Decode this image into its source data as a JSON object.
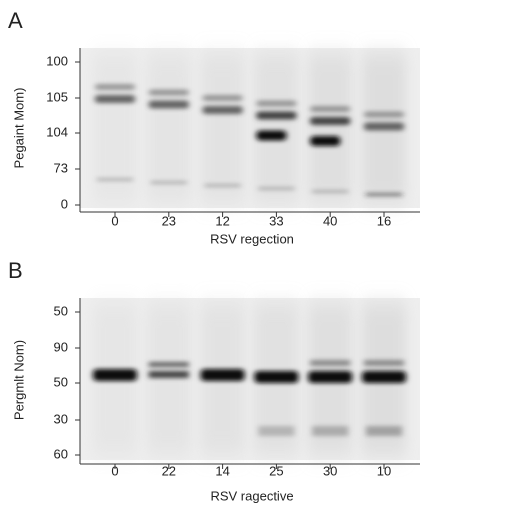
{
  "panels": [
    {
      "label": "A",
      "y_axis_title": "Pegaint Mom)",
      "y_labels": [
        "100",
        "105",
        "104",
        "73",
        "0"
      ],
      "x_labels": [
        "0",
        "23",
        "12",
        "33",
        "40",
        "16"
      ],
      "x_axis_title": "RSV regection"
    },
    {
      "label": "B",
      "y_axis_title": "Pergmlt Nom)",
      "y_labels": [
        "50",
        "90",
        "50",
        "30",
        "60"
      ],
      "x_labels": [
        "0",
        "22",
        "14",
        "25",
        "30",
        "10"
      ],
      "x_axis_title": "RSV ragective"
    }
  ]
}
